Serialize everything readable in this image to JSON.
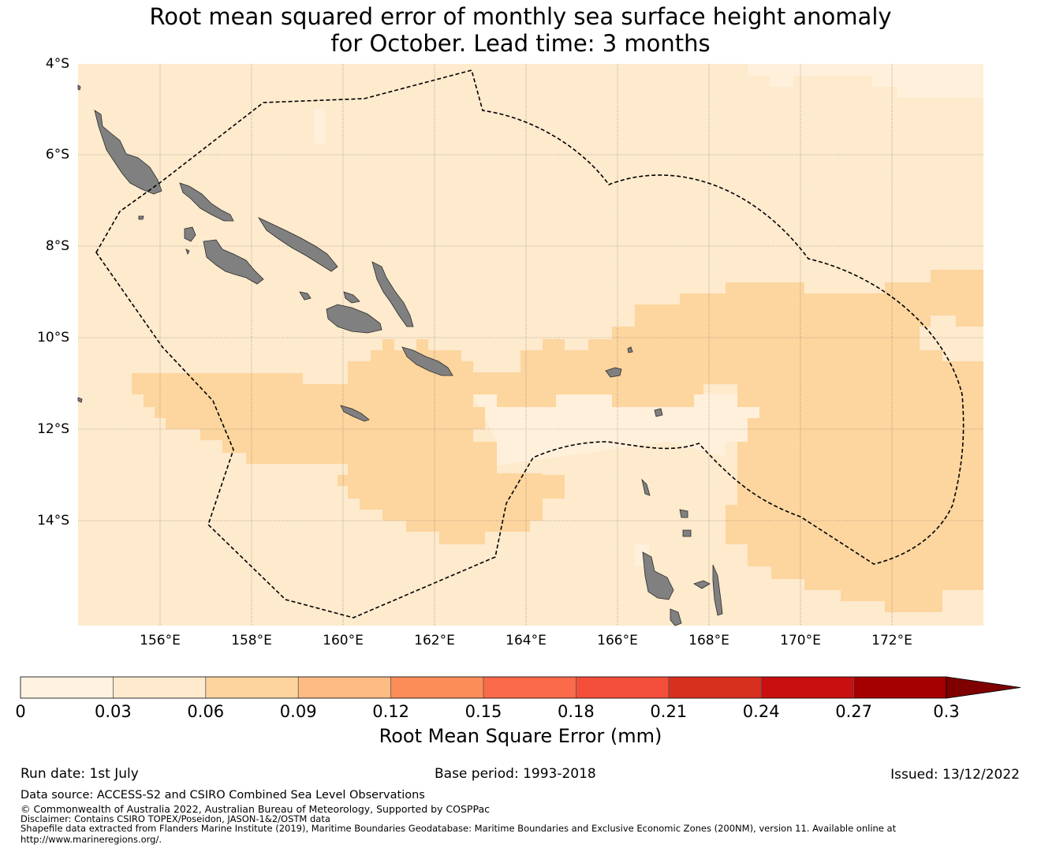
{
  "title_line1": "Root mean squared error of monthly sea surface height anomaly",
  "title_line2": "for October. Lead time: 3 months",
  "map": {
    "lat_labels": [
      "4°S",
      "6°S",
      "8°S",
      "10°S",
      "12°S",
      "14°S"
    ],
    "lon_labels": [
      "156°E",
      "158°E",
      "160°E",
      "162°E",
      "164°E",
      "166°E",
      "168°E",
      "170°E",
      "172°E"
    ],
    "colors": {
      "ocean_low": "#fff0db",
      "ocean_mid": "#feeacd",
      "ocean_high": "#fdd59e",
      "land": "#808080",
      "boundary": "#000000"
    }
  },
  "colorbar": {
    "ticks": [
      "0",
      "0.03",
      "0.06",
      "0.09",
      "0.12",
      "0.15",
      "0.18",
      "0.21",
      "0.24",
      "0.27",
      "0.3"
    ],
    "colors": [
      "#fff2e0",
      "#feeacd",
      "#fdd49e",
      "#fdbb84",
      "#fc8d59",
      "#fb6a4a",
      "#f34e3a",
      "#d7301f",
      "#c81010",
      "#a40000",
      "#7f0000"
    ],
    "label": "Root Mean Square Error (mm)"
  },
  "footer": {
    "run_date": "Run date: 1st July",
    "base_period": "Base period: 1993-2018",
    "issued": "Issued: 13/12/2022",
    "data_source": "Data source: ACCESS-S2 and CSIRO Combined Sea Level Observations",
    "copyright": "© Commonwealth of Australia 2022, Australian Bureau of Meteorology, Supported by COSPPac",
    "disclaimer": "Disclaimer: Contains CSIRO TOPEX/Poseidon, JASON-1&2/OSTM data",
    "shapefile_line1": "Shapefile data extracted from Flanders Marine Institute (2019), Maritime Boundaries Geodatabase: Maritime Boundaries and Exclusive Economic Zones (200NM), version 11. Available online at",
    "shapefile_line2": "http://www.marineregions.org/."
  }
}
